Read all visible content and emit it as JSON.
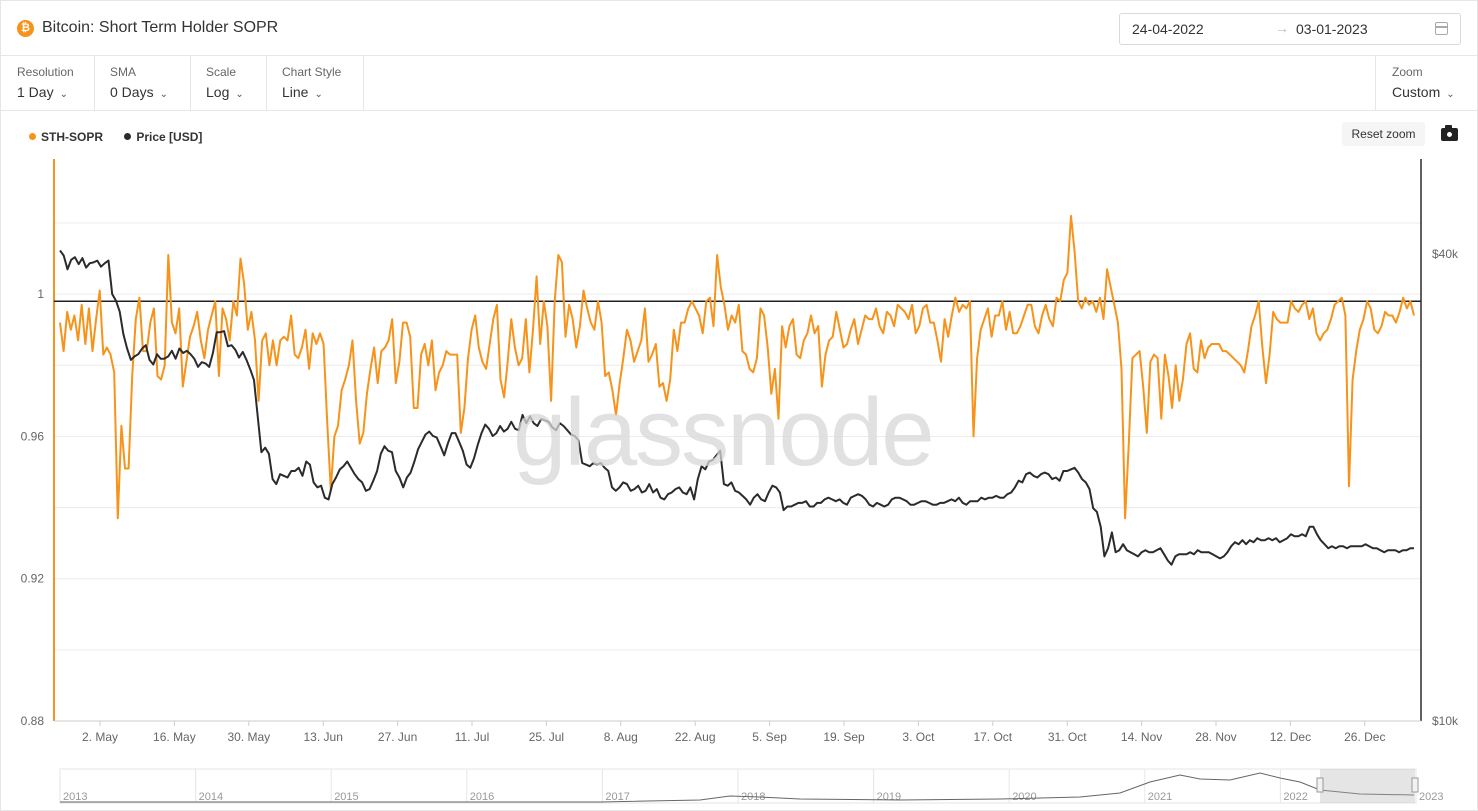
{
  "header": {
    "title": "Bitcoin: Short Term Holder SOPR",
    "coin_symbol": "₿",
    "date_start": "24-04-2022",
    "date_arrow": "→",
    "date_end": "03-01-2023"
  },
  "controls": [
    {
      "label": "Resolution",
      "value": "1 Day"
    },
    {
      "label": "SMA",
      "value": "0 Days"
    },
    {
      "label": "Scale",
      "value": "Log"
    },
    {
      "label": "Chart Style",
      "value": "Line"
    }
  ],
  "zoom": {
    "label": "Zoom",
    "value": "Custom"
  },
  "reset_zoom": "Reset zoom",
  "watermark": "glassnode",
  "colors": {
    "sopr": "#f7931a",
    "price": "#2b2b2b",
    "accent": "#f7931a"
  },
  "chart_data": {
    "type": "line",
    "xlabel": "",
    "ylabel": "",
    "y_left_ticks": [
      "0.88",
      "0.92",
      "0.96",
      "1"
    ],
    "y_left_range": [
      0.88,
      1.038
    ],
    "y_right_ticks": [
      "$10k",
      "$40k"
    ],
    "y_right_scale": "log",
    "y_right_range": [
      10000,
      53000
    ],
    "x_ticks": [
      "2. May",
      "16. May",
      "30. May",
      "13. Jun",
      "27. Jun",
      "11. Jul",
      "25. Jul",
      "8. Aug",
      "22. Aug",
      "5. Sep",
      "19. Sep",
      "3. Oct",
      "17. Oct",
      "31. Oct",
      "14. Nov",
      "28. Nov",
      "12. Dec",
      "26. Dec"
    ],
    "reference_line": 0.998,
    "legend_position": "top-left",
    "series": [
      {
        "name": "STH-SOPR",
        "color": "#f7931a",
        "axis": "left",
        "values": [
          0.992,
          0.984,
          0.995,
          0.99,
          0.994,
          0.987,
          0.997,
          0.986,
          0.996,
          0.984,
          0.993,
          1.001,
          0.983,
          0.985,
          0.983,
          0.978,
          0.937,
          0.963,
          0.951,
          0.951,
          0.977,
          0.993,
          0.999,
          0.984,
          0.984,
          0.992,
          0.996,
          0.977,
          0.976,
          0.98,
          1.011,
          0.992,
          0.989,
          0.996,
          0.974,
          0.981,
          0.988,
          0.991,
          0.995,
          0.987,
          0.982,
          0.99,
          0.994,
          0.998,
          0.977,
          0.996,
          0.993,
          0.987,
          0.998,
          0.994,
          1.01,
          1.003,
          0.99,
          0.995,
          0.987,
          0.97,
          0.987,
          0.989,
          0.98,
          0.987,
          0.98,
          0.987,
          0.988,
          0.987,
          0.994,
          0.983,
          0.982,
          0.985,
          0.99,
          0.979,
          0.989,
          0.986,
          0.989,
          0.986,
          0.964,
          0.945,
          0.96,
          0.963,
          0.973,
          0.976,
          0.98,
          0.987,
          0.97,
          0.958,
          0.961,
          0.972,
          0.979,
          0.985,
          0.975,
          0.984,
          0.985,
          0.987,
          0.993,
          0.975,
          0.981,
          0.992,
          0.992,
          0.988,
          0.968,
          0.968,
          0.983,
          0.986,
          0.98,
          0.987,
          0.973,
          0.978,
          0.98,
          0.984,
          0.983,
          0.983,
          0.983,
          0.961,
          0.968,
          0.982,
          0.99,
          0.994,
          0.985,
          0.981,
          0.979,
          0.986,
          0.993,
          0.997,
          0.976,
          0.971,
          0.981,
          0.993,
          0.985,
          0.98,
          0.982,
          0.993,
          0.978,
          0.99,
          1.005,
          0.986,
          0.998,
          0.991,
          0.97,
          0.998,
          1.011,
          1.009,
          0.988,
          0.997,
          0.993,
          0.985,
          0.991,
          1.001,
          0.996,
          0.992,
          0.99,
          0.998,
          0.992,
          0.977,
          0.978,
          0.973,
          0.966,
          0.975,
          0.982,
          0.99,
          0.987,
          0.981,
          0.984,
          0.987,
          0.996,
          0.981,
          0.983,
          0.986,
          0.974,
          0.975,
          0.97,
          0.976,
          0.99,
          0.984,
          0.992,
          0.992,
          0.996,
          0.998,
          0.996,
          0.994,
          0.989,
          0.998,
          0.999,
          0.991,
          1.011,
          1.002,
          0.997,
          0.99,
          0.994,
          0.992,
          0.997,
          0.984,
          0.983,
          0.979,
          0.978,
          0.982,
          0.996,
          0.994,
          0.985,
          0.972,
          0.979,
          0.965,
          0.991,
          0.985,
          0.991,
          0.993,
          0.983,
          0.982,
          0.987,
          0.989,
          0.994,
          0.989,
          0.991,
          0.974,
          0.983,
          0.987,
          0.988,
          0.995,
          0.99,
          0.985,
          0.986,
          0.99,
          0.993,
          0.986,
          0.99,
          0.994,
          0.993,
          0.993,
          0.996,
          0.991,
          0.989,
          0.995,
          0.994,
          0.991,
          0.997,
          0.996,
          0.995,
          0.993,
          0.997,
          0.989,
          0.991,
          0.996,
          0.997,
          0.992,
          0.992,
          0.987,
          0.981,
          0.993,
          0.988,
          0.994,
          0.999,
          0.995,
          0.997,
          0.996,
          0.998,
          0.96,
          0.982,
          0.99,
          0.993,
          0.996,
          0.988,
          0.994,
          0.994,
          0.998,
          0.99,
          0.995,
          0.989,
          0.989,
          0.991,
          0.994,
          0.997,
          0.997,
          0.991,
          0.989,
          0.994,
          0.997,
          0.993,
          0.991,
          0.999,
          0.998,
          1.004,
          1.006,
          1.022,
          1.012,
          0.998,
          0.996,
          0.999,
          0.997,
          0.998,
          0.995,
          0.999,
          0.993,
          1.007,
          1.002,
          0.997,
          0.992,
          0.979,
          0.937,
          0.958,
          0.982,
          0.983,
          0.984,
          0.974,
          0.961,
          0.981,
          0.983,
          0.982,
          0.965,
          0.983,
          0.977,
          0.968,
          0.98,
          0.97,
          0.976,
          0.986,
          0.989,
          0.979,
          0.978,
          0.987,
          0.982,
          0.985,
          0.986,
          0.986,
          0.986,
          0.984,
          0.984,
          0.983,
          0.982,
          0.981,
          0.98,
          0.978,
          0.984,
          0.991,
          0.994,
          0.998,
          0.985,
          0.975,
          0.983,
          0.995,
          0.993,
          0.992,
          0.992,
          0.992,
          0.998,
          0.996,
          0.995,
          0.997,
          0.998,
          0.993,
          0.996,
          0.989,
          0.987,
          0.989,
          0.99,
          0.993,
          0.997,
          0.998,
          0.999,
          0.994,
          0.946,
          0.976,
          0.984,
          0.99,
          0.993,
          0.998,
          0.996,
          0.99,
          0.989,
          0.991,
          0.995,
          0.994,
          0.994,
          0.992,
          0.995,
          0.999,
          0.996,
          0.998,
          0.994
        ]
      },
      {
        "name": "Price [USD]",
        "color": "#2b2b2b",
        "axis": "right",
        "values": [
          40400,
          39800,
          38200,
          39300,
          39600,
          38800,
          39500,
          38400,
          38900,
          39000,
          39200,
          38500,
          38900,
          39200,
          35500,
          34800,
          33700,
          31500,
          30200,
          29200,
          29500,
          29700,
          30200,
          30500,
          29200,
          28800,
          29700,
          29300,
          29300,
          29500,
          30000,
          29300,
          30200,
          29800,
          30000,
          29700,
          29300,
          28600,
          29000,
          28900,
          28600,
          29800,
          31700,
          31700,
          31800,
          30400,
          30500,
          30100,
          29400,
          29900,
          29200,
          28400,
          27500,
          24700,
          22200,
          22500,
          22100,
          20500,
          20200,
          20800,
          20700,
          20600,
          21000,
          21000,
          21200,
          20700,
          21600,
          21400,
          20300,
          20000,
          20100,
          19400,
          19300,
          20200,
          20600,
          21100,
          21300,
          21600,
          21200,
          20800,
          20500,
          20300,
          19800,
          19900,
          20400,
          21000,
          22100,
          22600,
          22300,
          22200,
          21000,
          20600,
          20000,
          20600,
          20900,
          21600,
          22400,
          22900,
          23400,
          23600,
          23300,
          23200,
          22600,
          22000,
          22800,
          23500,
          23500,
          22900,
          22300,
          21400,
          21200,
          21800,
          22700,
          23500,
          24100,
          23800,
          23300,
          23500,
          24000,
          23600,
          23800,
          24300,
          23800,
          23700,
          24800,
          24200,
          24700,
          24200,
          24000,
          24500,
          24400,
          24300,
          23900,
          23700,
          24200,
          24000,
          23700,
          23400,
          23300,
          23000,
          21500,
          21400,
          21300,
          21500,
          21400,
          21500,
          21200,
          21000,
          20000,
          19800,
          20000,
          20300,
          20200,
          19800,
          19900,
          20100,
          19700,
          19800,
          20200,
          19700,
          19900,
          19400,
          19300,
          19600,
          19700,
          19900,
          20000,
          19700,
          19600,
          20000,
          19300,
          20500,
          21300,
          21100,
          21600,
          21700,
          22000,
          22300,
          20200,
          20100,
          20300,
          19800,
          19700,
          19500,
          19300,
          19000,
          19400,
          19600,
          19300,
          19200,
          19700,
          20100,
          20000,
          19700,
          18700,
          18900,
          18900,
          19000,
          19100,
          19100,
          19200,
          18900,
          18900,
          19100,
          19100,
          19300,
          19400,
          19300,
          19200,
          19300,
          19100,
          19000,
          19400,
          19500,
          19600,
          19500,
          19300,
          19000,
          18900,
          19100,
          19000,
          18900,
          19000,
          19300,
          19400,
          19400,
          19300,
          19200,
          19000,
          19000,
          19100,
          19200,
          19200,
          19100,
          19000,
          19000,
          19100,
          19100,
          19200,
          19300,
          19200,
          19400,
          19100,
          19000,
          19200,
          19200,
          19200,
          19400,
          19300,
          19400,
          19400,
          19500,
          19400,
          19400,
          19600,
          19700,
          20000,
          20400,
          20300,
          20800,
          20900,
          20700,
          20600,
          20800,
          20900,
          20800,
          20500,
          20600,
          20400,
          21000,
          21000,
          21100,
          21200,
          20900,
          20500,
          20300,
          19900,
          18800,
          18600,
          17800,
          16300,
          16700,
          17500,
          16500,
          16600,
          16900,
          16600,
          16500,
          16400,
          16300,
          16500,
          16600,
          16500,
          16500,
          16600,
          16700,
          16400,
          16100,
          15900,
          16300,
          16400,
          16400,
          16400,
          16500,
          16400,
          16600,
          16500,
          16500,
          16500,
          16400,
          16300,
          16200,
          16300,
          16500,
          16800,
          17000,
          16900,
          17100,
          16900,
          17100,
          17000,
          17200,
          17100,
          17100,
          17200,
          17100,
          17200,
          17000,
          17100,
          17200,
          17400,
          17300,
          17300,
          17400,
          17300,
          17800,
          17800,
          17400,
          17100,
          16900,
          16700,
          16800,
          16700,
          16800,
          16800,
          16700,
          16800,
          16800,
          16800,
          16800,
          16900,
          16800,
          16700,
          16700,
          16600,
          16500,
          16600,
          16600,
          16600,
          16500,
          16600,
          16600,
          16700,
          16700
        ]
      }
    ]
  },
  "navigator": {
    "years": [
      "2013",
      "2014",
      "2015",
      "2016",
      "2017",
      "2018",
      "2019",
      "2020",
      "2021",
      "2022",
      "2023"
    ]
  }
}
